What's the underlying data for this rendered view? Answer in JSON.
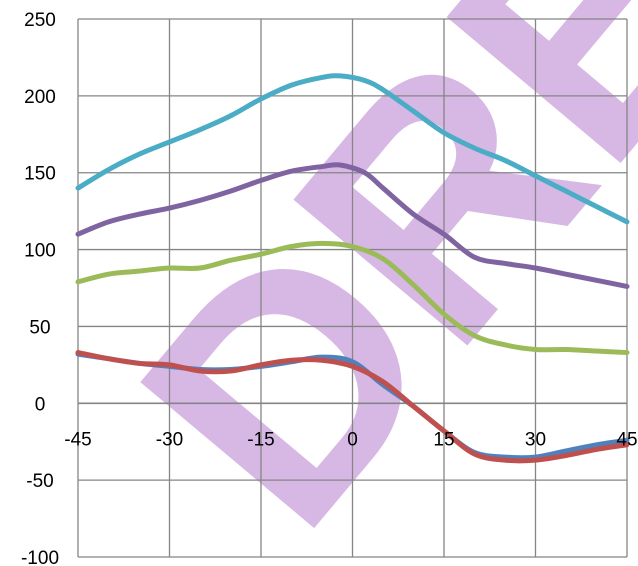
{
  "chart_data": {
    "type": "line",
    "title": "",
    "xlabel": "",
    "ylabel": "",
    "xlim": [
      -45,
      45
    ],
    "ylim": [
      -100,
      250
    ],
    "x_ticks": [
      -45,
      -30,
      -15,
      0,
      15,
      30,
      45
    ],
    "y_ticks": [
      250,
      200,
      150,
      100,
      50,
      0,
      -50,
      -100
    ],
    "grid": true,
    "legend": "none",
    "series": [
      {
        "color": "#4BACC6",
        "points": [
          [
            -45,
            140
          ],
          [
            -40,
            152
          ],
          [
            -35,
            162
          ],
          [
            -30,
            170
          ],
          [
            -25,
            178
          ],
          [
            -20,
            187
          ],
          [
            -15,
            198
          ],
          [
            -10,
            207
          ],
          [
            -5,
            212
          ],
          [
            -2,
            213
          ],
          [
            2,
            210
          ],
          [
            5,
            204
          ],
          [
            10,
            190
          ],
          [
            15,
            176
          ],
          [
            20,
            166
          ],
          [
            25,
            158
          ],
          [
            30,
            148
          ],
          [
            35,
            138
          ],
          [
            40,
            128
          ],
          [
            45,
            118
          ]
        ]
      },
      {
        "color": "#8064A2",
        "points": [
          [
            -45,
            110
          ],
          [
            -40,
            118
          ],
          [
            -35,
            123
          ],
          [
            -30,
            127
          ],
          [
            -25,
            132
          ],
          [
            -20,
            138
          ],
          [
            -15,
            145
          ],
          [
            -10,
            151
          ],
          [
            -5,
            154
          ],
          [
            -2,
            155
          ],
          [
            2,
            150
          ],
          [
            5,
            140
          ],
          [
            10,
            123
          ],
          [
            15,
            110
          ],
          [
            20,
            95
          ],
          [
            25,
            91
          ],
          [
            30,
            88
          ],
          [
            35,
            84
          ],
          [
            40,
            80
          ],
          [
            45,
            76
          ]
        ]
      },
      {
        "color": "#9BBB59",
        "points": [
          [
            -45,
            79
          ],
          [
            -40,
            84
          ],
          [
            -35,
            86
          ],
          [
            -30,
            88
          ],
          [
            -25,
            88
          ],
          [
            -20,
            93
          ],
          [
            -15,
            97
          ],
          [
            -10,
            102
          ],
          [
            -5,
            104
          ],
          [
            0,
            102
          ],
          [
            5,
            94
          ],
          [
            10,
            77
          ],
          [
            15,
            58
          ],
          [
            20,
            44
          ],
          [
            25,
            38
          ],
          [
            30,
            35
          ],
          [
            35,
            35
          ],
          [
            40,
            34
          ],
          [
            45,
            33
          ]
        ]
      },
      {
        "color": "#4F81BD",
        "points": [
          [
            -45,
            32
          ],
          [
            -40,
            29
          ],
          [
            -35,
            26
          ],
          [
            -30,
            24
          ],
          [
            -25,
            22
          ],
          [
            -20,
            22
          ],
          [
            -15,
            24
          ],
          [
            -10,
            27
          ],
          [
            -5,
            30
          ],
          [
            0,
            27
          ],
          [
            5,
            12
          ],
          [
            10,
            -2
          ],
          [
            15,
            -18
          ],
          [
            20,
            -32
          ],
          [
            25,
            -35
          ],
          [
            30,
            -35
          ],
          [
            35,
            -31
          ],
          [
            40,
            -27
          ],
          [
            45,
            -24
          ]
        ]
      },
      {
        "color": "#C0504D",
        "points": [
          [
            -45,
            33
          ],
          [
            -40,
            29
          ],
          [
            -35,
            26
          ],
          [
            -30,
            25
          ],
          [
            -25,
            21
          ],
          [
            -20,
            21
          ],
          [
            -15,
            25
          ],
          [
            -10,
            28
          ],
          [
            -5,
            28
          ],
          [
            0,
            24
          ],
          [
            5,
            14
          ],
          [
            10,
            -2
          ],
          [
            15,
            -18
          ],
          [
            20,
            -33
          ],
          [
            25,
            -37
          ],
          [
            30,
            -37
          ],
          [
            35,
            -34
          ],
          [
            40,
            -30
          ],
          [
            45,
            -27
          ]
        ]
      }
    ],
    "watermark": {
      "text": "DRE",
      "color": "#C9A0DC"
    }
  }
}
